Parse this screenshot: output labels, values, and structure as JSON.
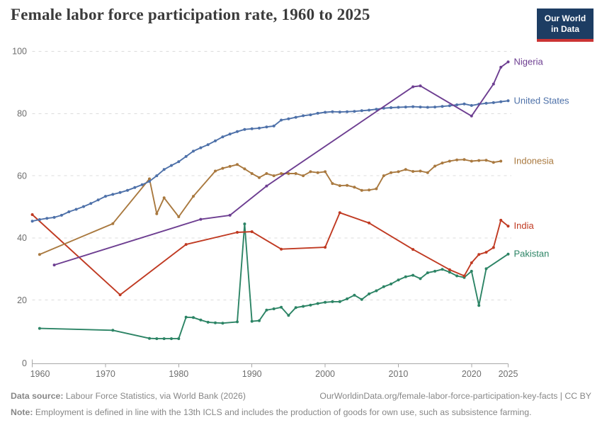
{
  "header": {
    "title": "Female labor force participation rate, 1960 to 2025",
    "logo": {
      "line1": "Our World",
      "line2": "in Data"
    }
  },
  "chart_data": {
    "type": "line",
    "title": "Female labor force participation rate, 1960 to 2025",
    "xlabel": "",
    "ylabel": "",
    "x_range": [
      1960,
      2025
    ],
    "y_range": [
      0,
      100
    ],
    "x_ticks": [
      1960,
      1970,
      1980,
      1990,
      2000,
      2010,
      2020,
      2025
    ],
    "y_ticks": [
      0,
      20,
      40,
      60,
      80,
      100
    ],
    "grid": "dashed-horizontal",
    "legend_position": "right-end-labels",
    "series": [
      {
        "name": "Nigeria",
        "color": "#6d3e91",
        "points": [
          [
            1963,
            31.3
          ],
          [
            1983,
            46.0
          ],
          [
            1987,
            47.3
          ],
          [
            1992,
            56.7
          ],
          [
            2012,
            88.6
          ],
          [
            2013,
            88.9
          ],
          [
            2020,
            79.2
          ],
          [
            2023,
            89.5
          ],
          [
            2024,
            94.9
          ],
          [
            2025,
            96.6
          ]
        ]
      },
      {
        "name": "United States",
        "color": "#4e71a9",
        "points": [
          [
            1960,
            45.4
          ],
          [
            1961,
            45.9
          ],
          [
            1962,
            46.3
          ],
          [
            1963,
            46.6
          ],
          [
            1964,
            47.3
          ],
          [
            1965,
            48.4
          ],
          [
            1966,
            49.2
          ],
          [
            1967,
            50.1
          ],
          [
            1968,
            51.1
          ],
          [
            1969,
            52.2
          ],
          [
            1970,
            53.4
          ],
          [
            1971,
            54.0
          ],
          [
            1972,
            54.6
          ],
          [
            1973,
            55.3
          ],
          [
            1974,
            56.2
          ],
          [
            1975,
            57.1
          ],
          [
            1976,
            58.2
          ],
          [
            1977,
            60.0
          ],
          [
            1978,
            62.0
          ],
          [
            1979,
            63.3
          ],
          [
            1980,
            64.5
          ],
          [
            1981,
            66.2
          ],
          [
            1982,
            67.9
          ],
          [
            1983,
            69.0
          ],
          [
            1984,
            70.0
          ],
          [
            1985,
            71.2
          ],
          [
            1986,
            72.5
          ],
          [
            1987,
            73.4
          ],
          [
            1988,
            74.2
          ],
          [
            1989,
            74.9
          ],
          [
            1990,
            75.1
          ],
          [
            1991,
            75.3
          ],
          [
            1992,
            75.7
          ],
          [
            1993,
            76.0
          ],
          [
            1994,
            77.9
          ],
          [
            1995,
            78.3
          ],
          [
            1996,
            78.8
          ],
          [
            1997,
            79.3
          ],
          [
            1998,
            79.6
          ],
          [
            1999,
            80.1
          ],
          [
            2000,
            80.4
          ],
          [
            2001,
            80.6
          ],
          [
            2002,
            80.5
          ],
          [
            2003,
            80.6
          ],
          [
            2004,
            80.7
          ],
          [
            2005,
            80.9
          ],
          [
            2006,
            81.1
          ],
          [
            2007,
            81.4
          ],
          [
            2008,
            81.7
          ],
          [
            2009,
            81.9
          ],
          [
            2010,
            82.0
          ],
          [
            2011,
            82.1
          ],
          [
            2012,
            82.2
          ],
          [
            2013,
            82.1
          ],
          [
            2014,
            82.0
          ],
          [
            2015,
            82.1
          ],
          [
            2016,
            82.3
          ],
          [
            2017,
            82.5
          ],
          [
            2018,
            82.8
          ],
          [
            2019,
            83.1
          ],
          [
            2020,
            82.6
          ],
          [
            2021,
            83.0
          ],
          [
            2022,
            83.3
          ],
          [
            2023,
            83.5
          ],
          [
            2024,
            83.8
          ],
          [
            2025,
            84.1
          ]
        ]
      },
      {
        "name": "Indonesia",
        "color": "#a9793f",
        "points": [
          [
            1961,
            34.7
          ],
          [
            1971,
            44.6
          ],
          [
            1976,
            59.0
          ],
          [
            1977,
            47.8
          ],
          [
            1978,
            52.9
          ],
          [
            1980,
            46.8
          ],
          [
            1982,
            53.4
          ],
          [
            1985,
            61.5
          ],
          [
            1986,
            62.4
          ],
          [
            1987,
            63.0
          ],
          [
            1988,
            63.6
          ],
          [
            1989,
            62.2
          ],
          [
            1990,
            60.7
          ],
          [
            1991,
            59.4
          ],
          [
            1992,
            60.7
          ],
          [
            1993,
            60.0
          ],
          [
            1994,
            60.7
          ],
          [
            1995,
            60.7
          ],
          [
            1996,
            60.7
          ],
          [
            1997,
            60.0
          ],
          [
            1998,
            61.3
          ],
          [
            1999,
            61.0
          ],
          [
            2000,
            61.3
          ],
          [
            2001,
            57.5
          ],
          [
            2002,
            56.8
          ],
          [
            2003,
            56.9
          ],
          [
            2004,
            56.3
          ],
          [
            2005,
            55.3
          ],
          [
            2006,
            55.4
          ],
          [
            2007,
            55.8
          ],
          [
            2008,
            60.0
          ],
          [
            2009,
            61.0
          ],
          [
            2010,
            61.3
          ],
          [
            2011,
            62.0
          ],
          [
            2012,
            61.4
          ],
          [
            2013,
            61.5
          ],
          [
            2014,
            61.0
          ],
          [
            2015,
            63.1
          ],
          [
            2016,
            64.1
          ],
          [
            2017,
            64.7
          ],
          [
            2018,
            65.1
          ],
          [
            2019,
            65.2
          ],
          [
            2020,
            64.7
          ],
          [
            2021,
            64.9
          ],
          [
            2022,
            65.0
          ],
          [
            2023,
            64.3
          ],
          [
            2024,
            64.7
          ]
        ]
      },
      {
        "name": "India",
        "color": "#c03a22",
        "points": [
          [
            1960,
            47.5
          ],
          [
            1972,
            21.7
          ],
          [
            1981,
            37.9
          ],
          [
            1988,
            41.8
          ],
          [
            1990,
            42.0
          ],
          [
            1994,
            36.4
          ],
          [
            2000,
            37.0
          ],
          [
            2002,
            48.1
          ],
          [
            2006,
            44.8
          ],
          [
            2012,
            36.3
          ],
          [
            2017,
            29.8
          ],
          [
            2019,
            27.8
          ],
          [
            2020,
            32.0
          ],
          [
            2021,
            34.7
          ],
          [
            2022,
            35.4
          ],
          [
            2023,
            36.9
          ],
          [
            2024,
            45.7
          ],
          [
            2025,
            43.8
          ]
        ]
      },
      {
        "name": "Pakistan",
        "color": "#2c8465",
        "points": [
          [
            1961,
            10.9
          ],
          [
            1971,
            10.3
          ],
          [
            1976,
            7.7
          ],
          [
            1977,
            7.6
          ],
          [
            1978,
            7.6
          ],
          [
            1979,
            7.6
          ],
          [
            1980,
            7.6
          ],
          [
            1981,
            14.5
          ],
          [
            1982,
            14.4
          ],
          [
            1983,
            13.6
          ],
          [
            1984,
            12.9
          ],
          [
            1985,
            12.7
          ],
          [
            1986,
            12.6
          ],
          [
            1988,
            13.0
          ],
          [
            1989,
            44.5
          ],
          [
            1990,
            13.2
          ],
          [
            1991,
            13.4
          ],
          [
            1992,
            16.8
          ],
          [
            1993,
            17.2
          ],
          [
            1994,
            17.7
          ],
          [
            1995,
            15.1
          ],
          [
            1996,
            17.6
          ],
          [
            1997,
            18.0
          ],
          [
            1998,
            18.4
          ],
          [
            1999,
            18.9
          ],
          [
            2000,
            19.3
          ],
          [
            2001,
            19.5
          ],
          [
            2002,
            19.5
          ],
          [
            2003,
            20.4
          ],
          [
            2004,
            21.6
          ],
          [
            2005,
            20.2
          ],
          [
            2006,
            22.0
          ],
          [
            2007,
            23.0
          ],
          [
            2008,
            24.3
          ],
          [
            2009,
            25.2
          ],
          [
            2010,
            26.5
          ],
          [
            2011,
            27.5
          ],
          [
            2012,
            28.0
          ],
          [
            2013,
            26.9
          ],
          [
            2014,
            28.8
          ],
          [
            2015,
            29.3
          ],
          [
            2016,
            29.9
          ],
          [
            2017,
            29.0
          ],
          [
            2018,
            27.8
          ],
          [
            2019,
            27.3
          ],
          [
            2020,
            29.3
          ],
          [
            2021,
            18.3
          ],
          [
            2022,
            30.1
          ],
          [
            2025,
            34.8
          ]
        ]
      }
    ]
  },
  "footer": {
    "source_label": "Data source:",
    "source_text": "Labour Force Statistics, via World Bank (2026)",
    "link_text": "OurWorldinData.org/female-labor-force-participation-key-facts | CC BY",
    "note_label": "Note:",
    "note_text": "Employment is defined in line with the 13th ICLS and includes the production of goods for own use, such as subsistence farming."
  },
  "colors": {
    "title": "#3b3b3b",
    "axis_line": "#a8a8a8",
    "tick_label": "#6e6e6e",
    "grid": "#dcdcdc",
    "footer_text": "#878787",
    "logo_bg": "#1d3d63",
    "logo_bar": "#cb3434",
    "background": "#ffffff"
  }
}
